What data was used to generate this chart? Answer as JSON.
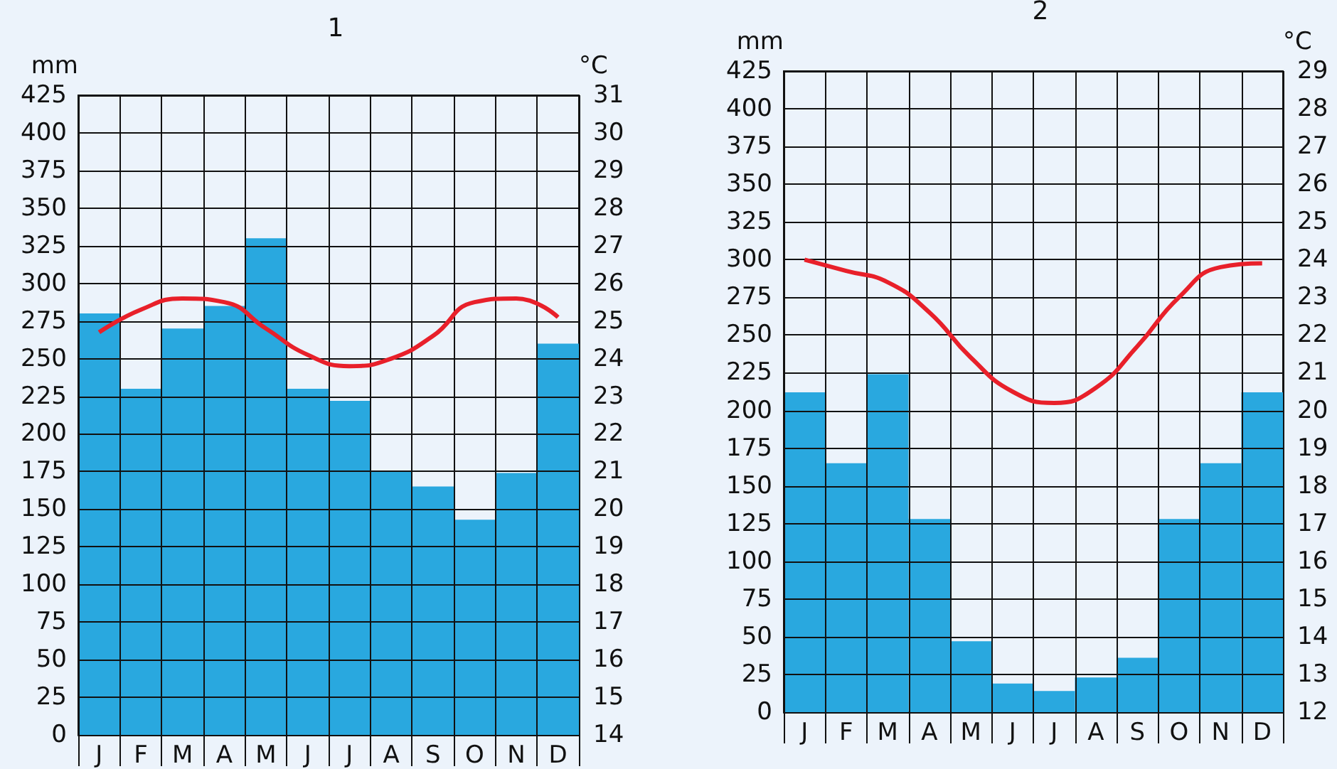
{
  "chart_data": [
    {
      "type": "bar",
      "title": "1",
      "ylabel": "mm",
      "y2label": "°C",
      "categories": [
        "J",
        "F",
        "M",
        "A",
        "M",
        "J",
        "J",
        "A",
        "S",
        "O",
        "N",
        "D"
      ],
      "ylim": [
        0,
        425
      ],
      "yticks": [
        0,
        25,
        50,
        75,
        100,
        125,
        150,
        175,
        200,
        225,
        250,
        275,
        300,
        325,
        350,
        375,
        400,
        425
      ],
      "y2lim": [
        14,
        31
      ],
      "y2ticks": [
        14,
        15,
        16,
        17,
        18,
        19,
        20,
        21,
        22,
        23,
        24,
        25,
        26,
        27,
        28,
        29,
        30,
        31
      ],
      "grid": true,
      "marker": "none",
      "series": [
        {
          "color": "#29a8df",
          "values": [
            280,
            230,
            270,
            285,
            330,
            230,
            222,
            175,
            165,
            143,
            174,
            260
          ]
        },
        {
          "type": "line",
          "axis": "y2",
          "color": "#e8202a",
          "values": [
            24.7,
            25.3,
            25.6,
            25.5,
            24.8,
            24.1,
            23.8,
            24.0,
            24.6,
            25.5,
            25.6,
            25.1
          ]
        }
      ]
    },
    {
      "type": "bar",
      "title": "2",
      "ylabel": "mm",
      "y2label": "°C",
      "categories": [
        "J",
        "F",
        "M",
        "A",
        "M",
        "J",
        "J",
        "A",
        "S",
        "O",
        "N",
        "D"
      ],
      "ylim": [
        0,
        425
      ],
      "yticks": [
        0,
        25,
        50,
        75,
        100,
        125,
        150,
        175,
        200,
        225,
        250,
        275,
        300,
        325,
        350,
        375,
        400,
        425
      ],
      "y2lim": [
        12,
        29
      ],
      "y2ticks": [
        12,
        13,
        14,
        15,
        16,
        17,
        18,
        19,
        20,
        21,
        22,
        23,
        24,
        25,
        26,
        27,
        28,
        29
      ],
      "grid": true,
      "marker": "none",
      "series": [
        {
          "color": "#29a8df",
          "values": [
            212,
            165,
            224,
            128,
            47,
            19,
            14,
            23,
            36,
            128,
            165,
            212
          ]
        },
        {
          "type": "line",
          "axis": "y2",
          "color": "#e8202a",
          "values": [
            24.0,
            23.7,
            23.4,
            22.6,
            21.4,
            20.5,
            20.2,
            20.6,
            21.7,
            23.0,
            23.8,
            23.9
          ]
        }
      ]
    }
  ]
}
